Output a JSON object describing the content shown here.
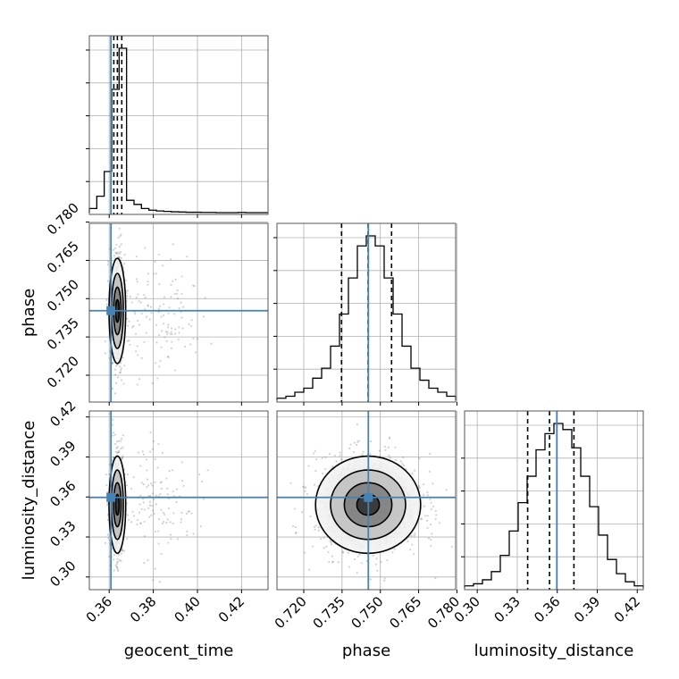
{
  "chart_data": {
    "type": "corner",
    "parameters": [
      "geocent_time",
      "phase",
      "luminosity_distance"
    ],
    "ranges": {
      "geocent_time": [
        0.351,
        0.432
      ],
      "phase": [
        0.7095,
        0.7795
      ],
      "luminosity_distance": [
        0.2905,
        0.4245
      ]
    },
    "ticks": {
      "geocent_time": [
        "0.36",
        "0.38",
        "0.40",
        "0.42"
      ],
      "phase": [
        "0.720",
        "0.735",
        "0.750",
        "0.765",
        "0.780"
      ],
      "luminosity_distance": [
        "0.30",
        "0.33",
        "0.36",
        "0.39",
        "0.42"
      ]
    },
    "truths": {
      "geocent_time": 0.3608,
      "phase": 0.7453,
      "luminosity_distance": 0.3597
    },
    "quantiles": {
      "geocent_time": [
        0.3621,
        0.3637,
        0.3657
      ],
      "phase": [
        0.7348,
        0.7452,
        0.7544
      ],
      "luminosity_distance": [
        0.3378,
        0.3542,
        0.3725
      ]
    },
    "histograms": [
      {
        "param": "geocent_time",
        "range": [
          0.351,
          0.432
        ],
        "counts": [
          1,
          4,
          10,
          30,
          40,
          3,
          2,
          1,
          0.6,
          0.4,
          0.3,
          0.2,
          0.15,
          0.1,
          0.1,
          0.05,
          0.05,
          0,
          0,
          0,
          0.05,
          0,
          0,
          0
        ]
      },
      {
        "param": "phase",
        "range": [
          0.7095,
          0.7795
        ],
        "counts": [
          1,
          2,
          4,
          6,
          11,
          16,
          27,
          43,
          61,
          77,
          82,
          77,
          61,
          43,
          27,
          16,
          10,
          6,
          4,
          2
        ]
      },
      {
        "param": "luminosity_distance",
        "range": [
          0.2905,
          0.4245
        ],
        "counts": [
          1,
          2,
          4,
          8,
          16,
          28,
          42,
          55,
          68,
          76,
          81,
          78,
          69,
          55,
          40,
          26,
          14,
          7,
          3,
          1
        ]
      }
    ],
    "scatter_panels": [
      {
        "x": "geocent_time",
        "y": "phase"
      },
      {
        "x": "geocent_time",
        "y": "luminosity_distance"
      },
      {
        "x": "phase",
        "y": "luminosity_distance"
      }
    ],
    "xlabels": [
      "geocent_time",
      "phase",
      "luminosity_distance"
    ],
    "ylabels": [
      "",
      "phase",
      "luminosity_distance"
    ],
    "colors": {
      "truth": "#4682b4",
      "hist": "#000000",
      "grid": "#b0b0b0",
      "scatter": "#333333"
    }
  }
}
